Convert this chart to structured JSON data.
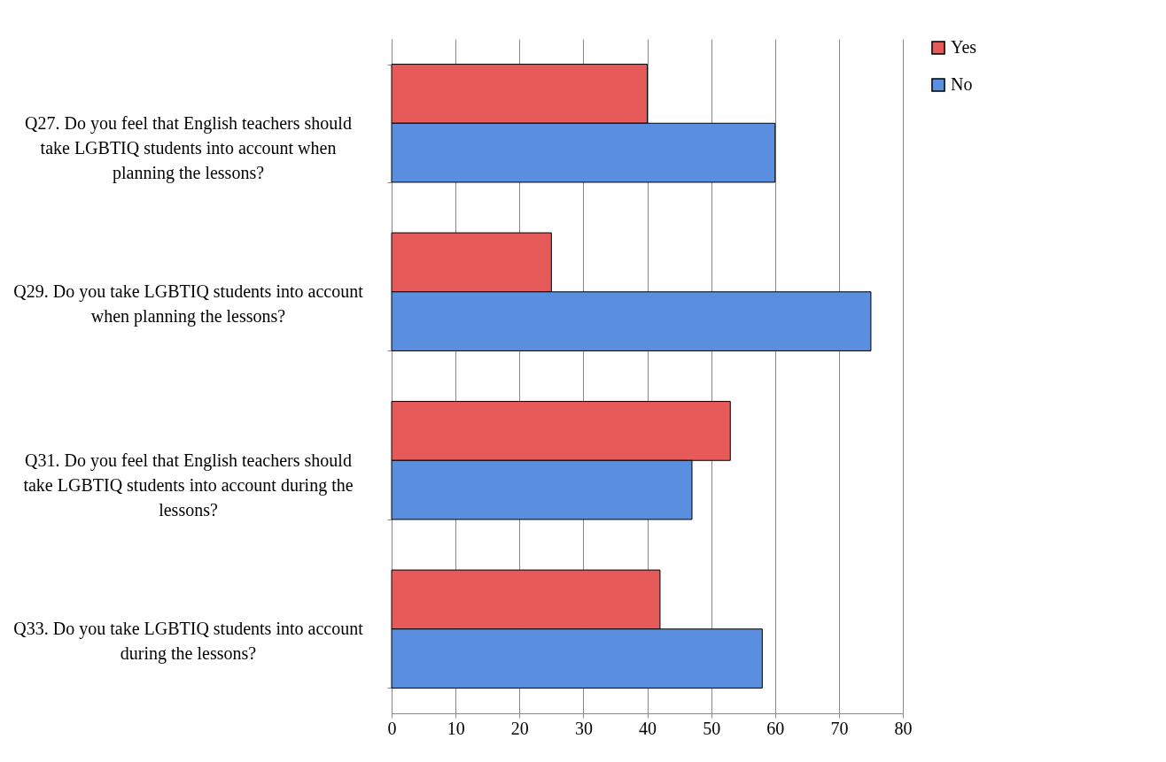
{
  "chart_data": {
    "type": "bar",
    "orientation": "horizontal",
    "categories": [
      "Q27. Do you feel that English teachers should take LGBTIQ students into account when planning the lessons?",
      "Q29. Do you take LGBTIQ students into account when planning the lessons?",
      "Q31. Do you feel that English teachers should take LGBTIQ students into account during the lessons?",
      "Q33. Do you take LGBTIQ students into account during the lessons?"
    ],
    "series": [
      {
        "name": "Yes",
        "color": "#e65a5a",
        "values": [
          40,
          25,
          53,
          42
        ]
      },
      {
        "name": "No",
        "color": "#5a8fe0",
        "values": [
          60,
          75,
          47,
          58
        ]
      }
    ],
    "xlim": [
      0,
      80
    ],
    "xticks": [
      0,
      10,
      20,
      30,
      40,
      50,
      60,
      70,
      80
    ],
    "grid": "x",
    "legend": "right"
  }
}
